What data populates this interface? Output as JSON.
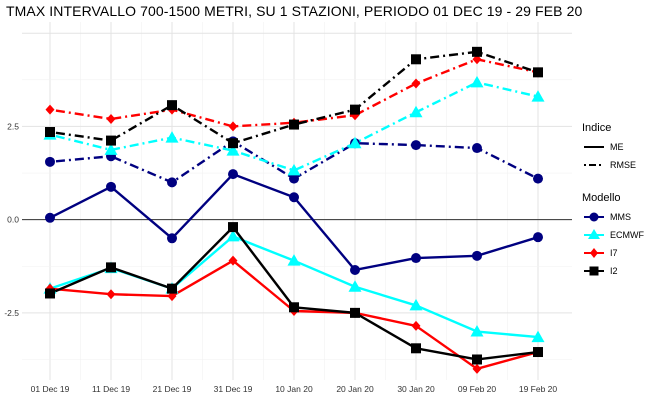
{
  "chart_data": {
    "type": "line",
    "title": "TMAX INTERVALLO 700-1500 METRI, SU 1 STAZIONI, PERIODO 01 DEC 19  -  29 FEB 20",
    "xlabel": "",
    "ylabel": "",
    "categories": [
      "01 Dec 19",
      "11 Dec 19",
      "21 Dec 19",
      "31 Dec 19",
      "10 Jan 20",
      "20 Jan 20",
      "30 Jan 20",
      "09 Feb 20",
      "19 Feb 20"
    ],
    "ylim": [
      -4.3,
      5.3
    ],
    "yticks": [
      -2.5,
      0.0,
      2.5
    ],
    "ytick_labels": [
      "-2.5",
      "0.0",
      "2.5"
    ],
    "grid": true,
    "zero_line": true,
    "legend_placement": "right",
    "legend_groups": [
      {
        "title": "Indice",
        "entries": [
          {
            "label": "ME",
            "linetype": "solid"
          },
          {
            "label": "RMSE",
            "linetype": "dotdash"
          }
        ]
      },
      {
        "title": "Modello",
        "entries": [
          {
            "label": "MMS",
            "color": "#000080",
            "shape": "circle"
          },
          {
            "label": "ECMWF",
            "color": "#00ffff",
            "shape": "triangle"
          },
          {
            "label": "I7",
            "color": "#ff0000",
            "shape": "diamond"
          },
          {
            "label": "I2",
            "color": "#000000",
            "shape": "square"
          }
        ]
      }
    ],
    "series": [
      {
        "model": "MMS",
        "indice": "ME",
        "color": "#000080",
        "shape": "circle",
        "values": [
          0.05,
          0.88,
          -0.5,
          1.22,
          0.6,
          -1.35,
          -1.03,
          -0.97,
          -0.47
        ]
      },
      {
        "model": "ECMWF",
        "indice": "ME",
        "color": "#00ffff",
        "shape": "triangle",
        "values": [
          -1.85,
          -1.3,
          -1.85,
          -0.45,
          -1.1,
          -1.8,
          -2.3,
          -3.0,
          -3.15
        ]
      },
      {
        "model": "I7",
        "indice": "ME",
        "color": "#ff0000",
        "shape": "diamond",
        "values": [
          -1.85,
          -2.0,
          -2.05,
          -1.1,
          -2.45,
          -2.5,
          -2.85,
          -4.0,
          -3.55
        ]
      },
      {
        "model": "I2",
        "indice": "ME",
        "color": "#000000",
        "shape": "square",
        "values": [
          -1.98,
          -1.28,
          -1.85,
          -0.2,
          -2.35,
          -2.5,
          -3.45,
          -3.75,
          -3.55
        ]
      },
      {
        "model": "MMS",
        "indice": "RMSE",
        "color": "#000080",
        "shape": "circle",
        "values": [
          1.55,
          1.7,
          1.0,
          2.1,
          1.1,
          2.05,
          2.0,
          1.92,
          1.1
        ]
      },
      {
        "model": "ECMWF",
        "indice": "RMSE",
        "color": "#00ffff",
        "shape": "triangle",
        "values": [
          2.28,
          1.87,
          2.2,
          1.85,
          1.32,
          2.05,
          2.88,
          3.68,
          3.3
        ]
      },
      {
        "model": "I7",
        "indice": "RMSE",
        "color": "#ff0000",
        "shape": "diamond",
        "values": [
          2.95,
          2.7,
          2.95,
          2.5,
          2.6,
          2.8,
          3.65,
          4.3,
          3.95
        ]
      },
      {
        "model": "I2",
        "indice": "RMSE",
        "color": "#000000",
        "shape": "square",
        "values": [
          2.35,
          2.12,
          3.07,
          2.05,
          2.55,
          2.95,
          4.3,
          4.5,
          3.95
        ]
      }
    ]
  }
}
